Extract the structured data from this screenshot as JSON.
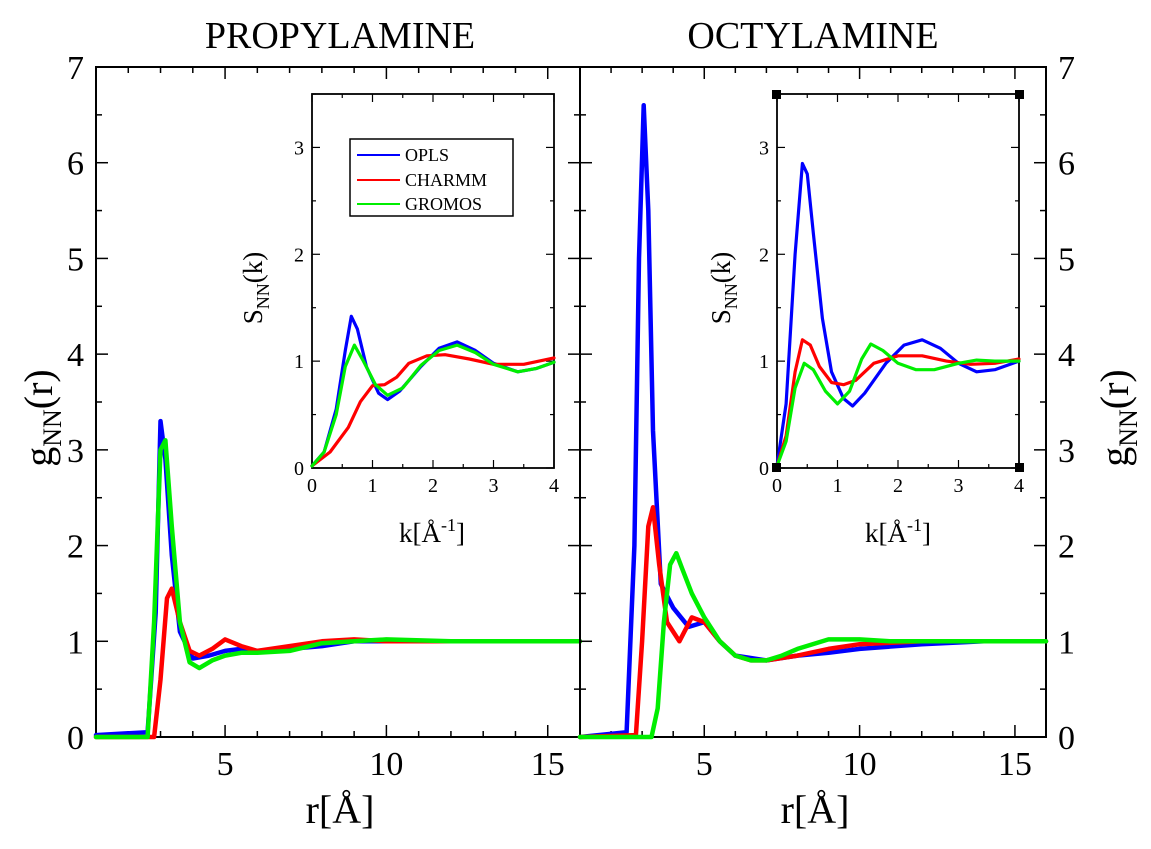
{
  "chart_data": [
    {
      "type": "line",
      "title": "PROPYLAMINE",
      "xlabel": "r[Å]",
      "ylabel_main": "g",
      "ylabel_sub": "NN",
      "ylabel_tail": "(r)",
      "xlim": [
        1,
        16
      ],
      "ylim": [
        0,
        7
      ],
      "xticks": [
        5,
        10,
        15
      ],
      "yticks": [
        0,
        1,
        2,
        3,
        4,
        5,
        6,
        7
      ],
      "series": [
        {
          "name": "OPLS",
          "color": "#0000ff",
          "x": [
            1.0,
            2.6,
            2.85,
            3.0,
            3.15,
            3.35,
            3.6,
            4.0,
            4.5,
            5.0,
            5.5,
            6.0,
            7.0,
            8.0,
            9.0,
            10.0,
            12.0,
            14.0,
            16.0
          ],
          "y": [
            0.02,
            0.05,
            1.3,
            3.3,
            2.9,
            1.9,
            1.1,
            0.82,
            0.85,
            0.9,
            0.92,
            0.9,
            0.92,
            0.95,
            1.0,
            1.0,
            1.0,
            1.0,
            1.0
          ]
        },
        {
          "name": "CHARMM",
          "color": "#ff0000",
          "x": [
            1.0,
            2.8,
            3.0,
            3.2,
            3.35,
            3.6,
            3.9,
            4.2,
            4.6,
            5.0,
            5.5,
            6.0,
            7.0,
            8.0,
            9.0,
            10.0,
            12.0,
            14.0,
            16.0
          ],
          "y": [
            0.0,
            0.0,
            0.6,
            1.45,
            1.55,
            1.2,
            0.9,
            0.85,
            0.92,
            1.02,
            0.95,
            0.9,
            0.95,
            1.0,
            1.02,
            1.0,
            1.0,
            1.0,
            1.0
          ]
        },
        {
          "name": "GROMOS",
          "color": "#00ee00",
          "x": [
            1.0,
            2.6,
            2.8,
            3.0,
            3.15,
            3.35,
            3.6,
            3.9,
            4.2,
            4.6,
            5.0,
            5.5,
            6.0,
            7.0,
            8.0,
            9.0,
            10.0,
            12.0,
            14.0,
            16.0
          ],
          "y": [
            0.0,
            0.0,
            1.2,
            3.0,
            3.1,
            2.2,
            1.2,
            0.78,
            0.72,
            0.8,
            0.85,
            0.88,
            0.88,
            0.9,
            0.98,
            1.0,
            1.02,
            1.0,
            1.0,
            1.0
          ]
        }
      ],
      "inset": {
        "xlabel": "k[Å-1]",
        "xlabel_main": "k[Å",
        "xlabel_sup": "-1",
        "xlabel_tail": "]",
        "ylabel_main": "S",
        "ylabel_sub": "NN",
        "ylabel_tail": "(k)",
        "xlim": [
          0,
          4
        ],
        "ylim": [
          0,
          3.5
        ],
        "xticks": [
          0,
          1,
          2,
          3,
          4
        ],
        "yticks": [
          0,
          1,
          2,
          3
        ],
        "legend": [
          "OPLS",
          "CHARMM",
          "GROMOS"
        ],
        "series": [
          {
            "name": "OPLS",
            "color": "#0000ff",
            "x": [
              0.0,
              0.2,
              0.4,
              0.55,
              0.65,
              0.75,
              0.9,
              1.1,
              1.25,
              1.45,
              1.8,
              2.1,
              2.4,
              2.7,
              3.0,
              3.4,
              3.7,
              4.0
            ],
            "y": [
              0.02,
              0.15,
              0.55,
              1.1,
              1.42,
              1.3,
              0.95,
              0.7,
              0.64,
              0.72,
              0.95,
              1.12,
              1.18,
              1.1,
              0.98,
              0.9,
              0.93,
              0.99
            ]
          },
          {
            "name": "CHARMM",
            "color": "#ff0000",
            "x": [
              0.0,
              0.3,
              0.6,
              0.8,
              1.0,
              1.2,
              1.4,
              1.6,
              1.9,
              2.2,
              2.6,
              3.0,
              3.5,
              4.0
            ],
            "y": [
              0.02,
              0.15,
              0.38,
              0.62,
              0.77,
              0.78,
              0.85,
              0.98,
              1.05,
              1.06,
              1.02,
              0.97,
              0.97,
              1.03
            ]
          },
          {
            "name": "GROMOS",
            "color": "#00ee00",
            "x": [
              0.0,
              0.2,
              0.4,
              0.55,
              0.7,
              0.85,
              1.05,
              1.25,
              1.5,
              1.8,
              2.1,
              2.4,
              2.7,
              3.0,
              3.4,
              3.7,
              4.0
            ],
            "y": [
              0.02,
              0.15,
              0.5,
              0.95,
              1.15,
              1.0,
              0.78,
              0.68,
              0.75,
              0.96,
              1.1,
              1.15,
              1.08,
              0.97,
              0.9,
              0.93,
              0.99
            ]
          }
        ]
      }
    },
    {
      "type": "line",
      "title": "OCTYLAMINE",
      "xlabel": "r[Å]",
      "ylabel_main": "g",
      "ylabel_sub": "NN",
      "ylabel_tail": "(r)",
      "xlim": [
        1,
        16
      ],
      "ylim": [
        0,
        7
      ],
      "xticks": [
        5,
        10,
        15
      ],
      "yticks": [
        0,
        1,
        2,
        3,
        4,
        5,
        6,
        7
      ],
      "series": [
        {
          "name": "OPLS",
          "color": "#0000ff",
          "x": [
            1.0,
            2.5,
            2.75,
            2.9,
            3.05,
            3.2,
            3.35,
            3.6,
            4.0,
            4.5,
            5.0,
            5.5,
            6.0,
            7.0,
            8.0,
            9.0,
            10.0,
            12.0,
            14.0,
            16.0
          ],
          "y": [
            0.0,
            0.05,
            2.0,
            5.0,
            6.6,
            5.5,
            3.2,
            1.6,
            1.35,
            1.15,
            1.2,
            1.0,
            0.85,
            0.8,
            0.85,
            0.88,
            0.92,
            0.97,
            1.0,
            1.0
          ]
        },
        {
          "name": "CHARMM",
          "color": "#ff0000",
          "x": [
            1.0,
            2.8,
            3.0,
            3.2,
            3.35,
            3.55,
            3.8,
            4.2,
            4.6,
            5.0,
            5.5,
            6.0,
            6.5,
            7.0,
            8.0,
            9.0,
            10.0,
            12.0,
            14.0,
            16.0
          ],
          "y": [
            0.0,
            0.02,
            1.0,
            2.2,
            2.4,
            1.8,
            1.2,
            1.0,
            1.25,
            1.2,
            1.0,
            0.85,
            0.8,
            0.8,
            0.85,
            0.92,
            0.97,
            1.0,
            1.0,
            1.0
          ]
        },
        {
          "name": "GROMOS",
          "color": "#00ee00",
          "x": [
            1.0,
            3.3,
            3.5,
            3.7,
            3.9,
            4.1,
            4.3,
            4.6,
            5.0,
            5.5,
            6.0,
            6.5,
            7.0,
            7.5,
            8.0,
            9.0,
            10.0,
            11.0,
            12.0,
            14.0,
            16.0
          ],
          "y": [
            0.0,
            0.0,
            0.3,
            1.2,
            1.8,
            1.92,
            1.75,
            1.5,
            1.25,
            1.0,
            0.85,
            0.8,
            0.8,
            0.85,
            0.92,
            1.02,
            1.02,
            1.0,
            1.0,
            1.0,
            1.0
          ]
        }
      ],
      "inset": {
        "xlabel": "k[Å-1]",
        "xlabel_main": "k[Å",
        "xlabel_sup": "-1",
        "xlabel_tail": "]",
        "ylabel_main": "S",
        "ylabel_sub": "NN",
        "ylabel_tail": "(k)",
        "xlim": [
          0,
          4
        ],
        "ylim": [
          0,
          3.5
        ],
        "xticks": [
          0,
          1,
          2,
          3,
          4
        ],
        "yticks": [
          0,
          1,
          2,
          3
        ],
        "legend": [],
        "series": [
          {
            "name": "OPLS",
            "color": "#0000ff",
            "x": [
              0.0,
              0.15,
              0.3,
              0.42,
              0.5,
              0.6,
              0.75,
              0.9,
              1.1,
              1.25,
              1.45,
              1.8,
              2.1,
              2.4,
              2.7,
              3.0,
              3.3,
              3.6,
              4.0
            ],
            "y": [
              0.02,
              0.6,
              2.0,
              2.85,
              2.75,
              2.2,
              1.4,
              0.9,
              0.65,
              0.58,
              0.7,
              0.98,
              1.15,
              1.2,
              1.12,
              0.98,
              0.9,
              0.92,
              1.0
            ]
          },
          {
            "name": "CHARMM",
            "color": "#ff0000",
            "x": [
              0.0,
              0.15,
              0.3,
              0.42,
              0.55,
              0.7,
              0.9,
              1.1,
              1.3,
              1.6,
              2.0,
              2.4,
              2.8,
              3.2,
              3.6,
              4.0
            ],
            "y": [
              0.02,
              0.3,
              0.9,
              1.2,
              1.15,
              0.95,
              0.8,
              0.78,
              0.82,
              0.98,
              1.05,
              1.05,
              1.0,
              0.97,
              0.98,
              1.02
            ]
          },
          {
            "name": "GROMOS",
            "color": "#00ee00",
            "x": [
              0.0,
              0.15,
              0.3,
              0.45,
              0.6,
              0.8,
              1.0,
              1.2,
              1.4,
              1.55,
              1.75,
              2.0,
              2.3,
              2.6,
              3.0,
              3.3,
              3.6,
              4.0
            ],
            "y": [
              0.02,
              0.25,
              0.75,
              0.98,
              0.92,
              0.72,
              0.6,
              0.72,
              1.02,
              1.16,
              1.1,
              0.98,
              0.92,
              0.92,
              0.98,
              1.01,
              1.0,
              1.0
            ]
          }
        ]
      }
    }
  ]
}
